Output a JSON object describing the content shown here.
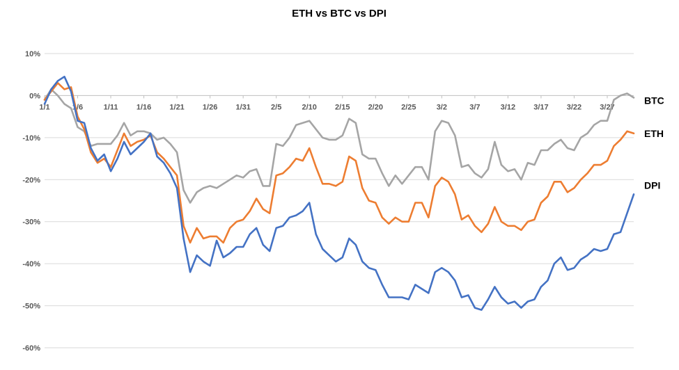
{
  "chart_data": {
    "type": "line",
    "title": "ETH vs BTC vs DPI",
    "xlabel": "",
    "ylabel": "",
    "ylim": [
      -60,
      10
    ],
    "yticks": [
      10,
      0,
      -10,
      -20,
      -30,
      -40,
      -50,
      -60
    ],
    "ytick_labels": [
      "10%",
      "0%",
      "-10%",
      "-20%",
      "-30%",
      "-40%",
      "-50%",
      "-60%"
    ],
    "xtick_labels": [
      "1/1",
      "1/6",
      "1/11",
      "1/16",
      "1/21",
      "1/26",
      "1/31",
      "2/5",
      "2/10",
      "2/15",
      "2/20",
      "2/25",
      "3/2",
      "3/7",
      "3/12",
      "3/17",
      "3/22",
      "3/27"
    ],
    "xtick_index": [
      0,
      5,
      10,
      15,
      20,
      25,
      30,
      35,
      40,
      45,
      50,
      55,
      60,
      65,
      70,
      75,
      80,
      85
    ],
    "legend": "series labels at right end of lines",
    "series": [
      {
        "name": "BTC",
        "color": "#a5a5a5",
        "values": [
          -1,
          1.5,
          0,
          -2,
          -3,
          -7.5,
          -8.5,
          -12,
          -11.5,
          -11.5,
          -11.5,
          -9.5,
          -6.5,
          -9.5,
          -8.5,
          -8.5,
          -9,
          -10.5,
          -10,
          -11.5,
          -13.5,
          -22.5,
          -25.5,
          -23,
          -22,
          -21.5,
          -22,
          -21,
          -20,
          -19,
          -19.5,
          -18,
          -17.5,
          -21.5,
          -21.5,
          -11.5,
          -12,
          -10,
          -7,
          -6.5,
          -6,
          -8,
          -10,
          -10.5,
          -10.5,
          -9.5,
          -5.5,
          -6.5,
          -14,
          -15,
          -15,
          -18.5,
          -21.5,
          -19,
          -21,
          -19,
          -17,
          -17,
          -20,
          -8.5,
          -6,
          -6.5,
          -9.5,
          -17,
          -16.5,
          -18.5,
          -19.5,
          -17.5,
          -11,
          -16.5,
          -18,
          -17.5,
          -20,
          -16,
          -16.5,
          -13,
          -13,
          -11.5,
          -10.5,
          -12.5,
          -13,
          -10,
          -9,
          -7,
          -6,
          -6,
          -1,
          0,
          0.5,
          -0.5
        ]
      },
      {
        "name": "ETH",
        "color": "#ed7d31",
        "values": [
          -1,
          1,
          3,
          1.5,
          2,
          -5,
          -8,
          -13.5,
          -16,
          -15,
          -17,
          -13,
          -9,
          -12,
          -11,
          -10.5,
          -9.5,
          -13.5,
          -15,
          -17,
          -19,
          -31,
          -35,
          -31.5,
          -34,
          -33.5,
          -33.5,
          -35,
          -31.5,
          -30,
          -29.5,
          -27.5,
          -24.5,
          -27,
          -28,
          -19,
          -18.5,
          -17,
          -15,
          -15.5,
          -12.5,
          -17,
          -21,
          -21,
          -21.5,
          -20.5,
          -14.5,
          -15.5,
          -22,
          -25,
          -25.5,
          -29,
          -30.5,
          -29,
          -30,
          -30,
          -25.5,
          -25.5,
          -29,
          -21.5,
          -19.5,
          -20.5,
          -23.5,
          -29.5,
          -28.5,
          -31,
          -32.5,
          -30.5,
          -26.5,
          -30,
          -31,
          -31,
          -32,
          -30,
          -29.5,
          -25.5,
          -24,
          -20.5,
          -20.5,
          -23,
          -22,
          -20,
          -18.5,
          -16.5,
          -16.5,
          -15.5,
          -12,
          -10.5,
          -8.5,
          -9
        ]
      },
      {
        "name": "DPI",
        "color": "#4472c4",
        "values": [
          -2,
          1.5,
          3.5,
          4.5,
          1,
          -6,
          -6.5,
          -12.5,
          -15.5,
          -14,
          -18,
          -15,
          -11,
          -14,
          -12.5,
          -11,
          -9,
          -14.5,
          -16,
          -18.5,
          -22,
          -34,
          -42,
          -38,
          -39.5,
          -40.5,
          -34.5,
          -38.5,
          -37.5,
          -36,
          -36,
          -33,
          -31.5,
          -35.5,
          -37,
          -31.5,
          -31,
          -29,
          -28.5,
          -27.5,
          -25.5,
          -33,
          -36.5,
          -38,
          -39.5,
          -38.5,
          -34,
          -35.5,
          -39.5,
          -41,
          -41.5,
          -45,
          -48,
          -48,
          -48,
          -48.5,
          -45,
          -46,
          -47,
          -42,
          -41,
          -42,
          -44,
          -48,
          -47.5,
          -50.5,
          -51,
          -48.5,
          -45.5,
          -48,
          -49.5,
          -49,
          -50.5,
          -49,
          -48.5,
          -45.5,
          -44,
          -40,
          -38.5,
          -41.5,
          -41,
          -39,
          -38,
          -36.5,
          -37,
          -36.5,
          -33,
          -32.5,
          -28,
          -23.5
        ]
      }
    ]
  }
}
